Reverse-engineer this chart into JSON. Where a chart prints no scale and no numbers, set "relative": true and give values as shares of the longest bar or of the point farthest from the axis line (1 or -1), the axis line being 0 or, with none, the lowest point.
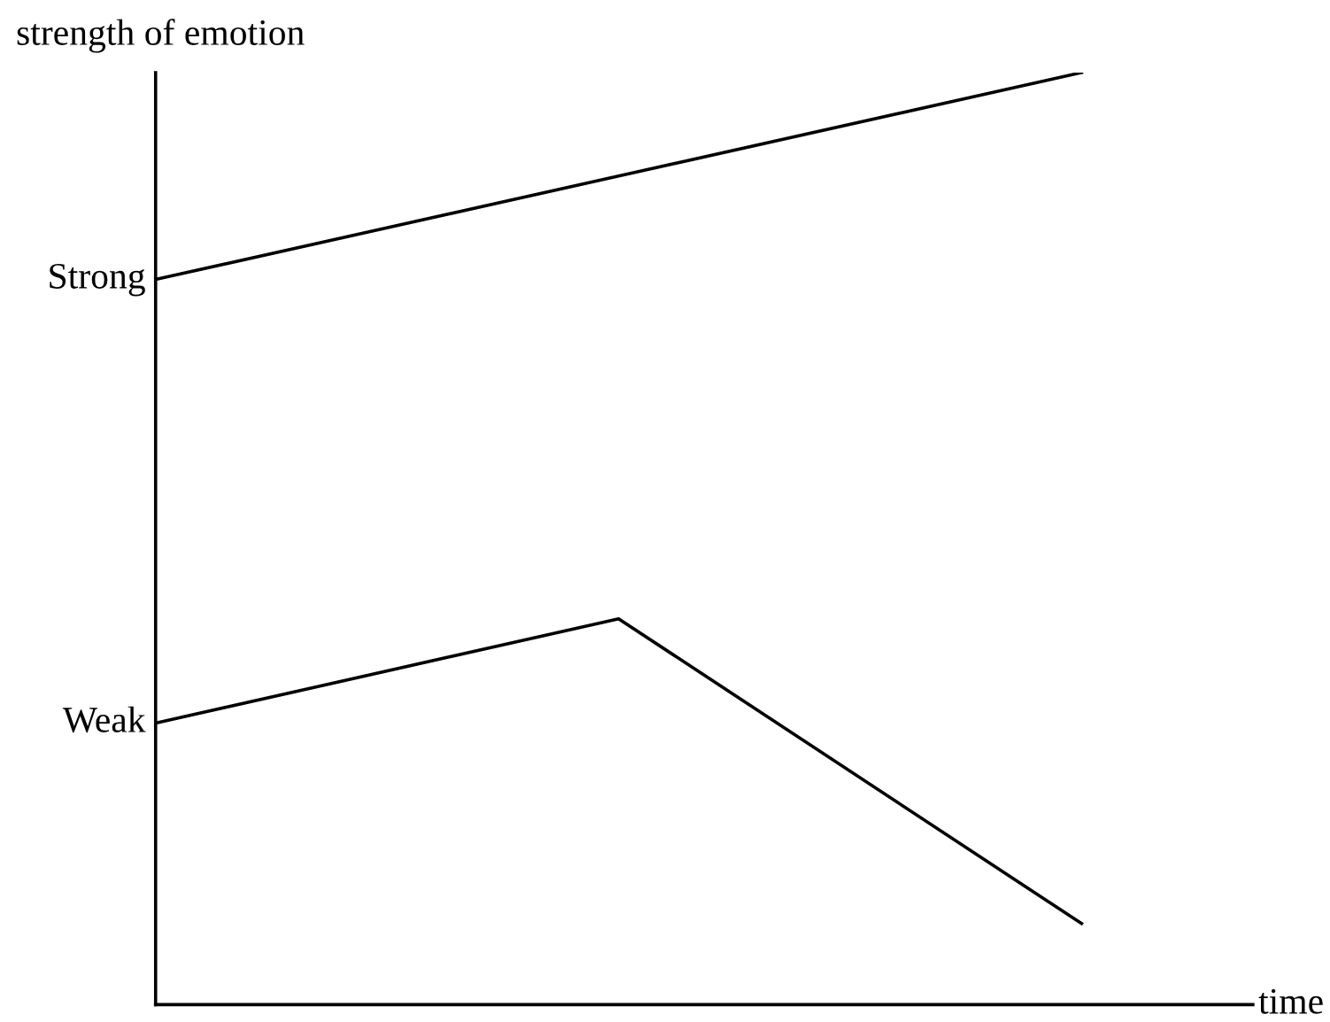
{
  "chart_data": {
    "type": "line",
    "relative": true,
    "xlabel": "time",
    "ylabel": "strength of emotion",
    "categories": [
      null,
      null,
      null
    ],
    "series": [
      {
        "color": "#000000",
        "values": [
          0.778,
          0.889,
          1.0
        ]
      },
      {
        "color": "#000000",
        "values": [
          0.302,
          0.414,
          0.087
        ]
      }
    ],
    "annotations": [
      "Strong",
      "Weak"
    ],
    "grid": false,
    "legend": false,
    "marker": "none",
    "line_style": "solid"
  }
}
